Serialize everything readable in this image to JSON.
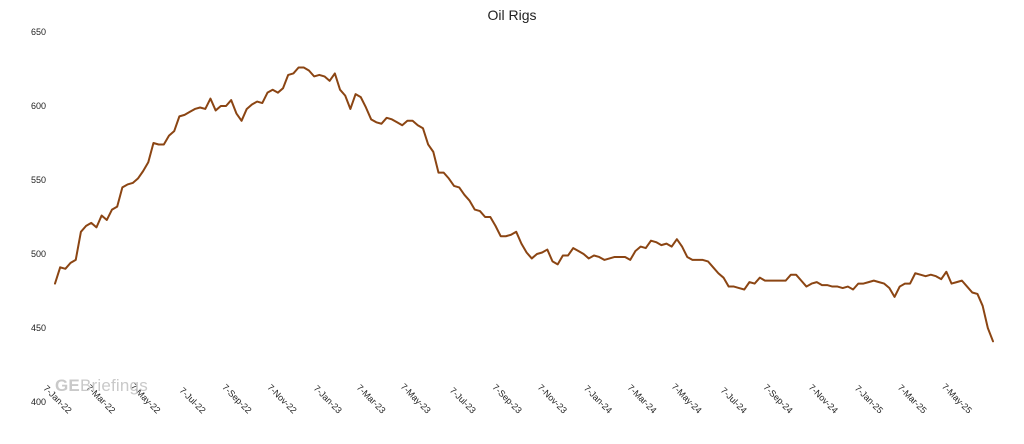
{
  "chart_data": {
    "type": "line",
    "title": "Oil Rigs",
    "xlabel": "",
    "ylabel": "",
    "ylim": [
      400,
      650
    ],
    "yticks": [
      400,
      450,
      500,
      550,
      600,
      650
    ],
    "grid": false,
    "legend": "none",
    "x_ticks": [
      "7-Jan-22",
      "7-Mar-22",
      "7-May-22",
      "7-Jul-22",
      "7-Sep-22",
      "7-Nov-22",
      "7-Jan-23",
      "7-Mar-23",
      "7-May-23",
      "7-Jul-23",
      "7-Sep-23",
      "7-Nov-23",
      "7-Jan-24",
      "7-Mar-24",
      "7-May-24",
      "7-Jul-24",
      "7-Sep-24",
      "7-Nov-24",
      "7-Jan-25",
      "7-Mar-25",
      "7-May-25"
    ],
    "x_start": "2022-01-07",
    "x_interval_days": 7,
    "colors": {
      "line": "#8b4513",
      "watermark": "#c9c9c9",
      "text": "#222222"
    },
    "series": [
      {
        "values": [
          480,
          491,
          490,
          494,
          496,
          515,
          519,
          521,
          518,
          526,
          523,
          530,
          532,
          545,
          547,
          548,
          551,
          556,
          562,
          575,
          574,
          574,
          580,
          583,
          593,
          594,
          596,
          598,
          599,
          598,
          605,
          597,
          600,
          600,
          604,
          595,
          590,
          598,
          601,
          603,
          602,
          609,
          611,
          609,
          612,
          621,
          622,
          626,
          626,
          624,
          620,
          621,
          620,
          617,
          622,
          611,
          607,
          598,
          608,
          606,
          599,
          591,
          589,
          588,
          592,
          591,
          589,
          587,
          590,
          590,
          587,
          585,
          574,
          569,
          555,
          555,
          551,
          546,
          545,
          540,
          536,
          530,
          529,
          525,
          525,
          519,
          512,
          512,
          513,
          515,
          507,
          501,
          497,
          500,
          501,
          503,
          495,
          493,
          499,
          499,
          504,
          502,
          500,
          497,
          499,
          498,
          496,
          497,
          498,
          498,
          498,
          496,
          502,
          505,
          504,
          509,
          508,
          506,
          507,
          505,
          510,
          505,
          498,
          496,
          496,
          496,
          495,
          491,
          487,
          484,
          478,
          478,
          477,
          476,
          481,
          480,
          484,
          482,
          482,
          482,
          482,
          482,
          486,
          486,
          482,
          478,
          480,
          481,
          479,
          479,
          478,
          478,
          477,
          478,
          476,
          480,
          480,
          481,
          482,
          481,
          480,
          477,
          471,
          478,
          480,
          480,
          487,
          486,
          485,
          486,
          485,
          483,
          488,
          480,
          481,
          482,
          478,
          474,
          473,
          465,
          450,
          441
        ]
      }
    ]
  },
  "watermark": {
    "bold": "GE",
    "light": "Briefings"
  }
}
